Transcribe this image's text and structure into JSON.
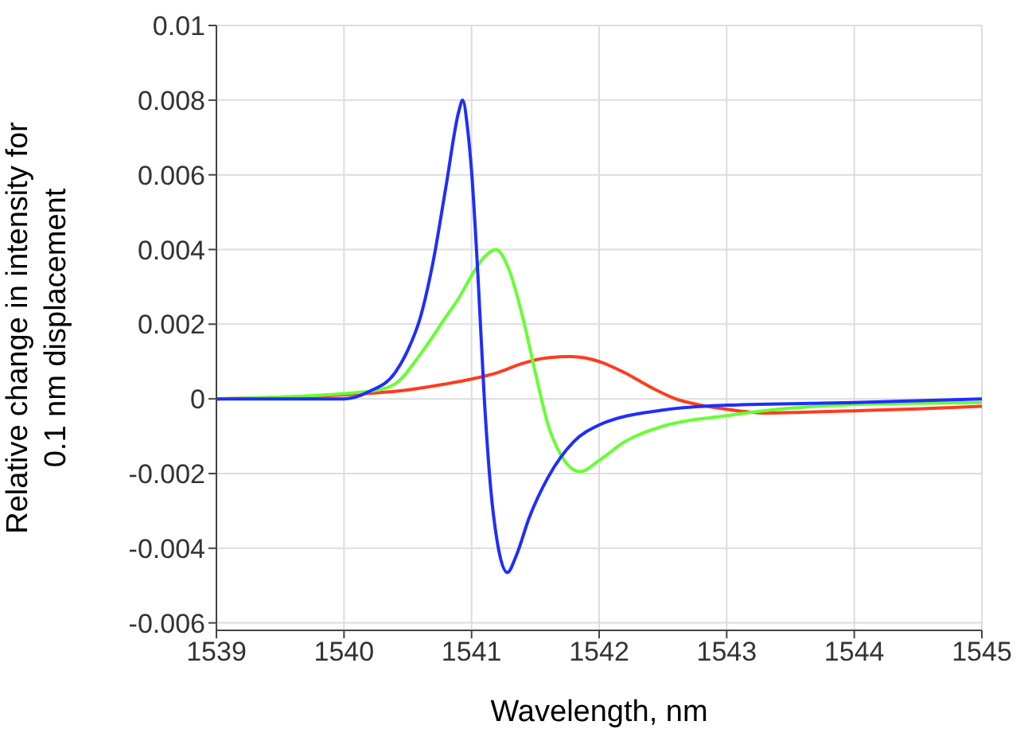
{
  "chart_data": {
    "type": "line",
    "xlabel": "Wavelength, nm",
    "ylabel": "Relative change in intensity for\n0.1 nm displacement",
    "xlim": [
      1539,
      1545
    ],
    "xticks": [
      1539,
      1540,
      1541,
      1542,
      1543,
      1544,
      1545
    ],
    "ylim": [
      -0.0062,
      0.01
    ],
    "yticks": [
      -0.006,
      -0.004,
      -0.002,
      0,
      0.002,
      0.004,
      0.006,
      0.008,
      0.01
    ],
    "grid": true,
    "marker": "none",
    "line_style": "solid",
    "series": [
      {
        "color": "#ff3b1f",
        "x": [
          1539,
          1540.4,
          1540.8,
          1541,
          1541.2,
          1541.4,
          1541.6,
          1541.78,
          1542,
          1542.2,
          1542.4,
          1542.6,
          1542.8,
          1543,
          1543.3,
          1543.6,
          1544,
          1544.5,
          1545
        ],
        "values": [
          0,
          0.0002,
          0.0004,
          0.00053,
          0.0007,
          0.00095,
          0.0011,
          0.00113,
          0.001,
          0.0007,
          0.00032,
          0,
          -0.00017,
          -0.00028,
          -0.00038,
          -0.00036,
          -0.00032,
          -0.00027,
          -0.0002
        ]
      },
      {
        "color": "#66ff33",
        "x": [
          1539,
          1540.2,
          1540.4,
          1540.6,
          1540.8,
          1540.9,
          1541,
          1541.1,
          1541.19,
          1541.3,
          1541.4,
          1541.5,
          1541.6,
          1541.7,
          1541.85,
          1542,
          1542.2,
          1542.5,
          1543,
          1543.5,
          1544,
          1545
        ],
        "values": [
          0,
          0.0002,
          0.0004,
          0.0012,
          0.0022,
          0.0027,
          0.0033,
          0.0038,
          0.004,
          0.0034,
          0.0022,
          0.0007,
          -0.0007,
          -0.0015,
          -0.00195,
          -0.00165,
          -0.00115,
          -0.00073,
          -0.00045,
          -0.00025,
          -0.00015,
          -0.0001
        ]
      },
      {
        "color": "#1f2dff",
        "x": [
          1539,
          1539.5,
          1540,
          1540.2,
          1540.4,
          1540.5,
          1540.6,
          1540.7,
          1540.8,
          1540.9,
          1540.93,
          1540.97,
          1541,
          1541.05,
          1541.1,
          1541.15,
          1541.2,
          1541.28,
          1541.35,
          1541.45,
          1541.6,
          1541.8,
          1542,
          1542.5,
          1543,
          1544,
          1545
        ],
        "values": [
          0,
          0,
          0,
          0.0002,
          0.0007,
          0.0013,
          0.0022,
          0.0037,
          0.0057,
          0.0077,
          0.008,
          0.0072,
          0.0061,
          0.0033,
          0,
          -0.0024,
          -0.0038,
          -0.00465,
          -0.0042,
          -0.0032,
          -0.0021,
          -0.00115,
          -0.0007,
          -0.0003,
          -0.00017,
          -0.0001,
          0
        ]
      }
    ]
  }
}
